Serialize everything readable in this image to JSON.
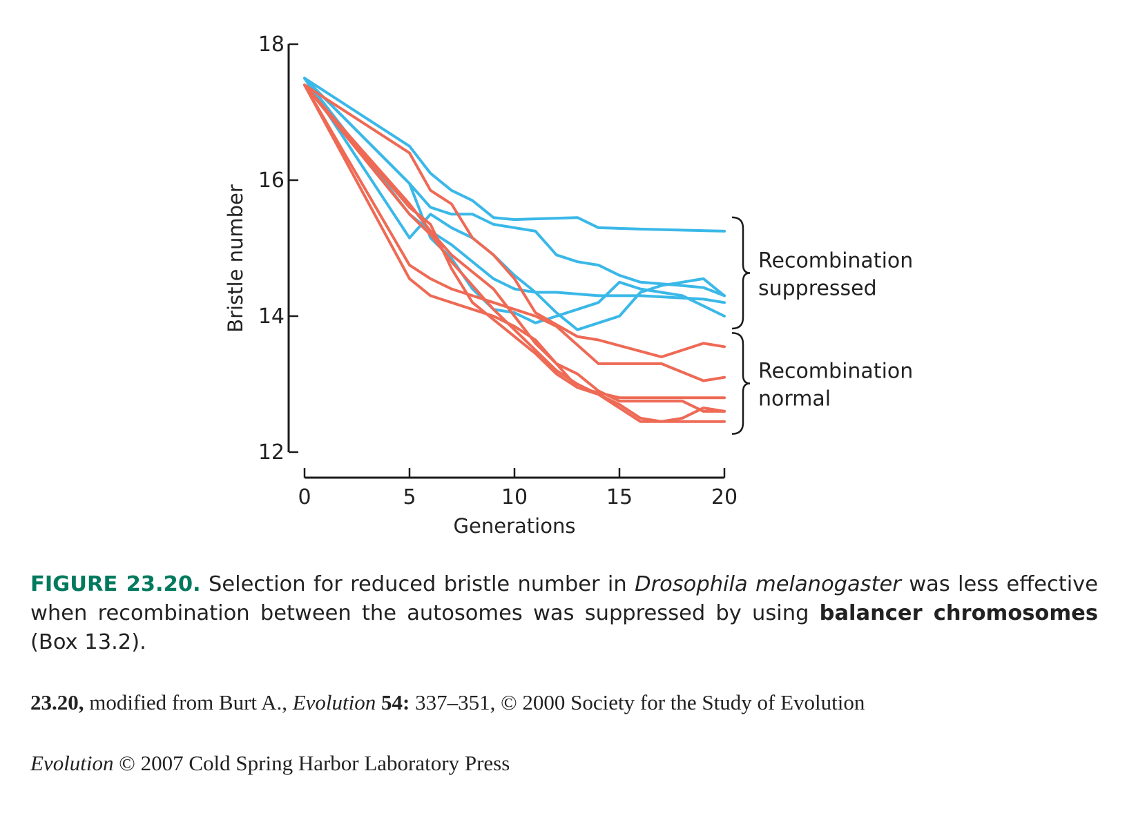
{
  "colors": {
    "suppressed": "#3ab8e8",
    "normal": "#ee6a55",
    "axis": "#1a1a1a",
    "figure_number": "#007a5e"
  },
  "chart_data": {
    "type": "line",
    "title": "",
    "xlabel": "Generations",
    "ylabel": "Bristle number",
    "xlim": [
      0,
      20
    ],
    "ylim": [
      12,
      18
    ],
    "x_ticks": [
      0,
      5,
      10,
      15,
      20
    ],
    "y_ticks": [
      12,
      14,
      16,
      18
    ],
    "grid": false,
    "legend": "none; groups labelled with right-side braces",
    "groups": [
      {
        "label_lines": [
          "Recombination",
          "suppressed"
        ],
        "color": "#3ab8e8",
        "series": [
          {
            "x": [
              0,
              5,
              6,
              7,
              8,
              9,
              10,
              13,
              14,
              16,
              20
            ],
            "y": [
              17.5,
              16.5,
              16.1,
              15.85,
              15.7,
              15.45,
              15.42,
              15.45,
              15.3,
              15.28,
              15.25
            ]
          },
          {
            "x": [
              0,
              5,
              6,
              7,
              8,
              9,
              11,
              12,
              13,
              14,
              15,
              16,
              18,
              19,
              20
            ],
            "y": [
              17.5,
              15.95,
              15.6,
              15.5,
              15.5,
              15.35,
              15.25,
              14.9,
              14.8,
              14.75,
              14.6,
              14.5,
              14.45,
              14.42,
              14.3
            ]
          },
          {
            "x": [
              0,
              5,
              6,
              7,
              8,
              9,
              10,
              11,
              12,
              14,
              16,
              19,
              20
            ],
            "y": [
              17.5,
              15.5,
              15.25,
              15.05,
              14.8,
              14.55,
              14.4,
              14.35,
              14.35,
              14.3,
              14.3,
              14.25,
              14.2
            ]
          },
          {
            "x": [
              0,
              5,
              6,
              7,
              8,
              9,
              10,
              11,
              12,
              13,
              14,
              15,
              16,
              17,
              18,
              19,
              20
            ],
            "y": [
              17.5,
              15.95,
              15.15,
              14.85,
              14.4,
              14.1,
              14.05,
              13.9,
              14.0,
              14.1,
              14.2,
              14.5,
              14.4,
              14.35,
              14.3,
              14.15,
              14.0
            ]
          },
          {
            "x": [
              0,
              5,
              6,
              7,
              8,
              9,
              10,
              11,
              12,
              13,
              15,
              16,
              17,
              18,
              19,
              20
            ],
            "y": [
              17.5,
              15.15,
              15.5,
              15.3,
              15.15,
              14.9,
              14.6,
              14.35,
              14.05,
              13.8,
              14.0,
              14.35,
              14.45,
              14.5,
              14.55,
              14.3
            ]
          }
        ]
      },
      {
        "label_lines": [
          "Recombination",
          "normal"
        ],
        "color": "#ee6a55",
        "series": [
          {
            "x": [
              0,
              5,
              6,
              7,
              8,
              9,
              10,
              11,
              13,
              14,
              17,
              19,
              20
            ],
            "y": [
              17.4,
              16.4,
              15.85,
              15.65,
              15.15,
              14.9,
              14.55,
              14.05,
              13.7,
              13.65,
              13.4,
              13.6,
              13.55
            ]
          },
          {
            "x": [
              0,
              5,
              6,
              7,
              8,
              9,
              10,
              11,
              12,
              14,
              17,
              19,
              20
            ],
            "y": [
              17.4,
              14.75,
              14.55,
              14.4,
              14.3,
              14.2,
              14.1,
              14.0,
              13.85,
              13.3,
              13.3,
              13.05,
              13.1
            ]
          },
          {
            "x": [
              0,
              5,
              6,
              7,
              8,
              9,
              10,
              11,
              12,
              13,
              15,
              20
            ],
            "y": [
              17.4,
              14.55,
              14.3,
              14.2,
              14.1,
              14.0,
              13.85,
              13.65,
              13.3,
              12.95,
              12.8,
              12.8
            ]
          },
          {
            "x": [
              0,
              5,
              6,
              7,
              8,
              9,
              10,
              11,
              12,
              13,
              14,
              15,
              16,
              17,
              18,
              19,
              20
            ],
            "y": [
              17.4,
              15.5,
              15.2,
              14.8,
              14.45,
              14.1,
              13.8,
              13.5,
              13.2,
              13.0,
              12.85,
              12.7,
              12.5,
              12.45,
              12.5,
              12.65,
              12.6
            ]
          },
          {
            "x": [
              0,
              5,
              6,
              7,
              8,
              9,
              10,
              11,
              12,
              13,
              14,
              15,
              16,
              20
            ],
            "y": [
              17.4,
              15.6,
              15.35,
              14.7,
              14.2,
              13.95,
              13.7,
              13.45,
              13.15,
              12.95,
              12.85,
              12.65,
              12.45,
              12.45
            ]
          },
          {
            "x": [
              0,
              5,
              6,
              7,
              8,
              9,
              10,
              11,
              12,
              13,
              14,
              15,
              16,
              18,
              19,
              20
            ],
            "y": [
              17.4,
              15.65,
              15.25,
              14.9,
              14.65,
              14.4,
              14.0,
              13.6,
              13.3,
              13.15,
              12.9,
              12.75,
              12.75,
              12.75,
              12.6,
              12.6
            ]
          }
        ]
      }
    ]
  },
  "caption": {
    "figure_number": "FIGURE 23.20.",
    "text_1": " Selection for reduced bristle number in ",
    "species": "Drosophila melanogaster",
    "text_2": " was less effective when recombination between the autosomes was suppressed by using ",
    "bold_term": "balancer chromosomes",
    "text_3": " (Box 13.2)."
  },
  "credit": {
    "ref_number": "23.20,",
    "text_1": " modified from Burt A., ",
    "journal": "Evolution",
    "volume": "54:",
    "text_2": " 337–351, © 2000 Society for the Study of Evolution"
  },
  "copyright": {
    "book": "Evolution",
    "text": " © 2007 Cold Spring Harbor Laboratory Press"
  }
}
